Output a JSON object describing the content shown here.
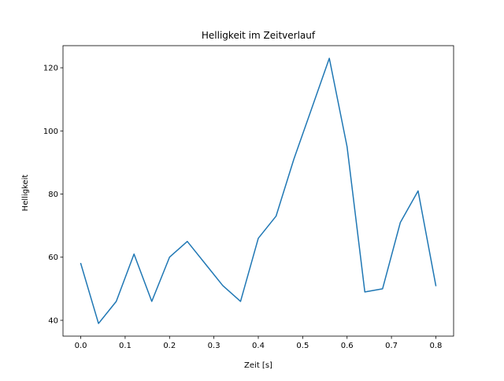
{
  "chart_data": {
    "type": "line",
    "title": "Helligkeit im Zeitverlauf",
    "xlabel": "Zeit [s]",
    "ylabel": "Helligkeit",
    "xlim": [
      -0.04,
      0.84
    ],
    "ylim": [
      35,
      127
    ],
    "x_ticks": [
      0.0,
      0.1,
      0.2,
      0.3,
      0.4,
      0.5,
      0.6,
      0.7,
      0.8
    ],
    "x_tick_labels": [
      "0.0",
      "0.1",
      "0.2",
      "0.3",
      "0.4",
      "0.5",
      "0.6",
      "0.7",
      "0.8"
    ],
    "y_ticks": [
      40,
      60,
      80,
      100,
      120
    ],
    "y_tick_labels": [
      "40",
      "60",
      "80",
      "100",
      "120"
    ],
    "grid": false,
    "series": [
      {
        "color": "#1f77b4",
        "x": [
          0.0,
          0.04,
          0.08,
          0.12,
          0.16,
          0.2,
          0.24,
          0.28,
          0.32,
          0.36,
          0.4,
          0.44,
          0.48,
          0.52,
          0.56,
          0.6,
          0.64,
          0.68,
          0.72,
          0.76,
          0.8
        ],
        "values": [
          58,
          39,
          46,
          61,
          46,
          60,
          65,
          58,
          51,
          46,
          66,
          73,
          91,
          107,
          123,
          95,
          49,
          50,
          71,
          81,
          51
        ]
      }
    ]
  }
}
